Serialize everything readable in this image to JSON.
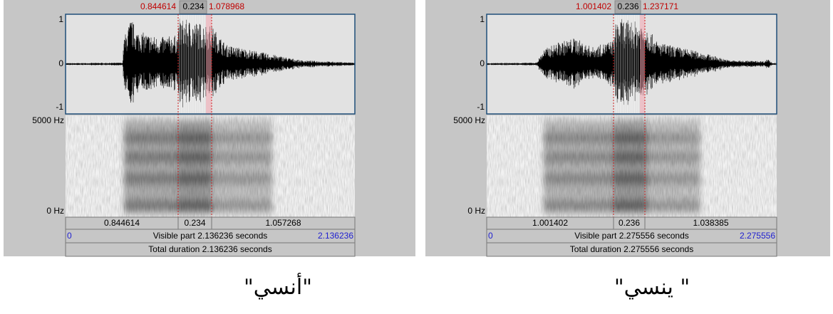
{
  "panels": [
    {
      "selection_start": "0.844614",
      "selection_duration": "0.234",
      "selection_end": "1.078968",
      "y_labels": [
        "1",
        "0",
        "-1"
      ],
      "freq_labels": [
        "5000 Hz",
        "0 Hz"
      ],
      "segments": [
        "0.844614",
        "0.234",
        "1.057268"
      ],
      "visible_start": "0",
      "visible_part": "Visible part 2.136236 seconds",
      "visible_end": "2.136236",
      "total_duration": "Total duration 2.136236 seconds",
      "caption": "\"أنسي\""
    },
    {
      "selection_start": "1.001402",
      "selection_duration": "0.236",
      "selection_end": "1.237171",
      "y_labels": [
        "1",
        "0",
        "-1"
      ],
      "freq_labels": [
        "5000 Hz",
        "0 Hz"
      ],
      "segments": [
        "1.001402",
        "0.236",
        "1.038385"
      ],
      "visible_start": "0",
      "visible_part": "Visible part 2.275556 seconds",
      "visible_end": "2.275556",
      "total_duration": "Total duration 2.275556 seconds",
      "caption": "\" ينسي\""
    }
  ]
}
